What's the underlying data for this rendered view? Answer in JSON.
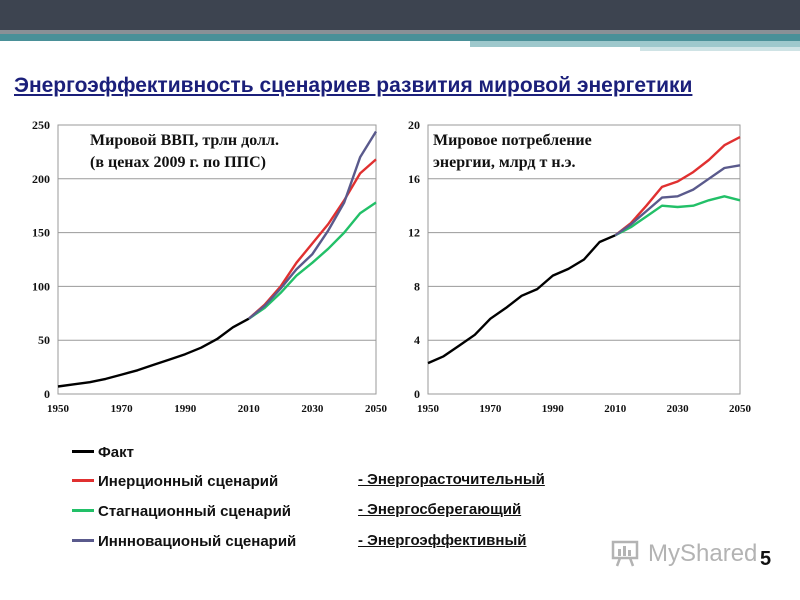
{
  "title": "Энергоэффективность  сценариев развития мировой энергетики",
  "legend": [
    {
      "label": "Факт",
      "color": "#000000"
    },
    {
      "label": "Инерционный сценарий",
      "color": "#e03030"
    },
    {
      "label": "Стагнационный сценарий",
      "color": "#22c068"
    },
    {
      "label": "Иннновационый сценарий",
      "color": "#5a5a8c"
    }
  ],
  "scenarios": [
    "- Энергорасточительный",
    "- Энергосберегающий",
    "- Энергоэффективный"
  ],
  "watermark": "MyShared",
  "page_number": "5",
  "chart_data": [
    {
      "type": "line",
      "title_lines": [
        "Мировой ВВП, трлн долл.",
        "(в ценах 2009 г. по ППС)"
      ],
      "xlabel": "",
      "ylabel": "",
      "xlim": [
        1950,
        2050
      ],
      "ylim": [
        0,
        250
      ],
      "xticks": [
        "1950",
        "1970",
        "1990",
        "2010",
        "2030",
        "2050"
      ],
      "yticks": [
        "0",
        "50",
        "100",
        "150",
        "200",
        "250"
      ],
      "grid": true,
      "series": [
        {
          "name": "Факт",
          "color": "#000000",
          "x": [
            1950,
            1955,
            1960,
            1965,
            1970,
            1975,
            1980,
            1985,
            1990,
            1995,
            2000,
            2005,
            2010
          ],
          "y": [
            7,
            9,
            11,
            14,
            18,
            22,
            27,
            32,
            37,
            43,
            51,
            62,
            70
          ]
        },
        {
          "name": "Инерционный сценарий",
          "color": "#e03030",
          "x": [
            2010,
            2015,
            2020,
            2025,
            2030,
            2035,
            2040,
            2045,
            2050
          ],
          "y": [
            70,
            83,
            100,
            122,
            140,
            158,
            180,
            205,
            218
          ]
        },
        {
          "name": "Стагнационный сценарий",
          "color": "#22c068",
          "x": [
            2010,
            2015,
            2020,
            2025,
            2030,
            2035,
            2040,
            2045,
            2050
          ],
          "y": [
            70,
            80,
            94,
            110,
            122,
            135,
            150,
            168,
            178
          ]
        },
        {
          "name": "Иннновационый сценарий",
          "color": "#5a5a8c",
          "x": [
            2010,
            2015,
            2020,
            2025,
            2030,
            2035,
            2040,
            2045,
            2050
          ],
          "y": [
            70,
            82,
            98,
            116,
            130,
            152,
            178,
            220,
            244
          ]
        }
      ]
    },
    {
      "type": "line",
      "title_lines": [
        "Мировое потребление",
        "энергии, млрд т н.э."
      ],
      "xlabel": "",
      "ylabel": "",
      "xlim": [
        1950,
        2050
      ],
      "ylim": [
        0,
        20
      ],
      "xticks": [
        "1950",
        "1970",
        "1990",
        "2010",
        "2030",
        "2050"
      ],
      "yticks": [
        "0",
        "4",
        "8",
        "12",
        "16",
        "20"
      ],
      "grid": true,
      "series": [
        {
          "name": "Факт",
          "color": "#000000",
          "x": [
            1950,
            1955,
            1960,
            1965,
            1970,
            1975,
            1980,
            1985,
            1990,
            1995,
            2000,
            2005,
            2010
          ],
          "y": [
            2.3,
            2.8,
            3.6,
            4.4,
            5.6,
            6.4,
            7.3,
            7.8,
            8.8,
            9.3,
            10.0,
            11.3,
            11.8
          ]
        },
        {
          "name": "Инерционный сценарий",
          "color": "#e03030",
          "x": [
            2010,
            2015,
            2020,
            2025,
            2030,
            2035,
            2040,
            2045,
            2050
          ],
          "y": [
            11.8,
            12.7,
            14.0,
            15.4,
            15.8,
            16.5,
            17.4,
            18.5,
            19.1
          ]
        },
        {
          "name": "Стагнационный сценарий",
          "color": "#22c068",
          "x": [
            2010,
            2015,
            2020,
            2025,
            2030,
            2035,
            2040,
            2045,
            2050
          ],
          "y": [
            11.8,
            12.4,
            13.2,
            14.0,
            13.9,
            14.0,
            14.4,
            14.7,
            14.4
          ]
        },
        {
          "name": "Иннновационый сценарий",
          "color": "#5a5a8c",
          "x": [
            2010,
            2015,
            2020,
            2025,
            2030,
            2035,
            2040,
            2045,
            2050
          ],
          "y": [
            11.8,
            12.6,
            13.6,
            14.6,
            14.7,
            15.2,
            16.0,
            16.8,
            17.0
          ]
        }
      ]
    }
  ]
}
